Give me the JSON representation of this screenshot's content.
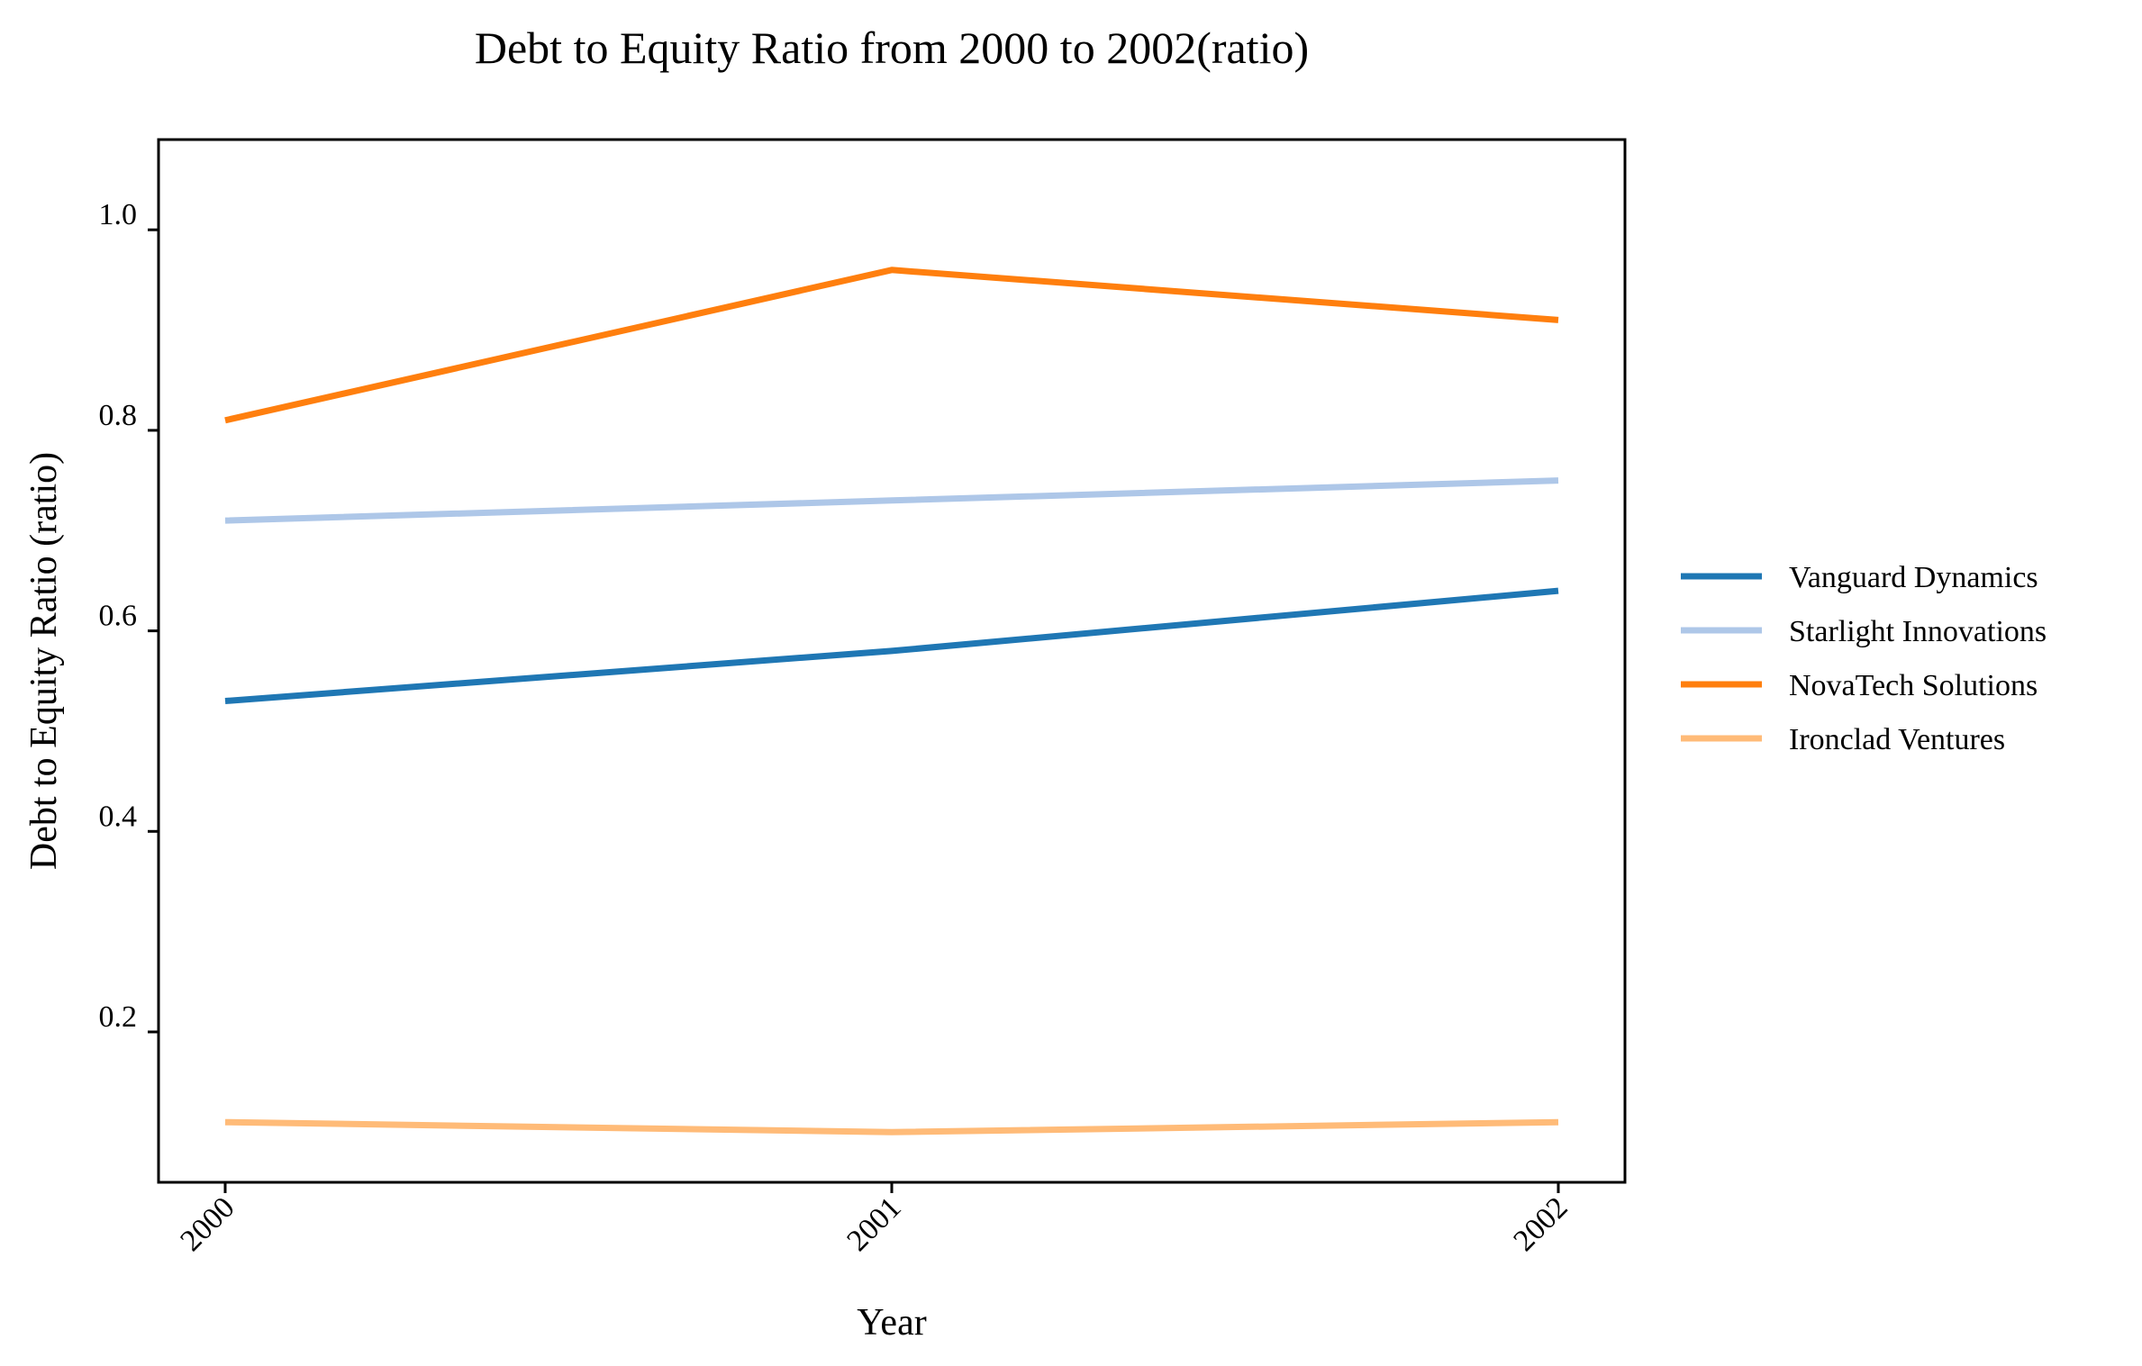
{
  "chart_data": {
    "type": "line",
    "title": "Debt to Equity Ratio from 2000 to 2002(ratio)",
    "xlabel": "Year",
    "ylabel": "Debt to Equity Ratio (ratio)",
    "x": [
      "2000",
      "2001",
      "2002"
    ],
    "yticks": [
      "0.2",
      "0.4",
      "0.6",
      "0.8",
      "1.0"
    ],
    "ylim": [
      0.05,
      1.09
    ],
    "grid": false,
    "legend_position": "right",
    "series": [
      {
        "name": "Vanguard Dynamics",
        "color": "#1f77b4",
        "values": [
          0.53,
          0.58,
          0.64
        ]
      },
      {
        "name": "Starlight Innovations",
        "color": "#aec7e8",
        "values": [
          0.71,
          0.73,
          0.75
        ]
      },
      {
        "name": "NovaTech Solutions",
        "color": "#ff7f0e",
        "values": [
          0.81,
          0.96,
          0.91
        ]
      },
      {
        "name": "Ironclad Ventures",
        "color": "#ffbb78",
        "values": [
          0.11,
          0.1,
          0.11
        ]
      }
    ]
  }
}
